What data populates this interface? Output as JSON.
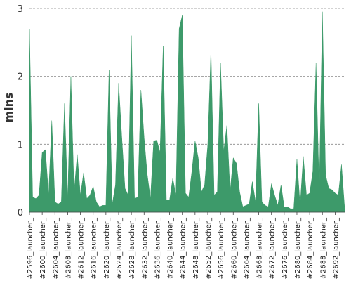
{
  "chart_data": {
    "type": "area",
    "title": "",
    "xlabel": "",
    "ylabel": "mins",
    "ylim": [
      0,
      3
    ],
    "yticks": [
      0,
      1,
      2,
      3
    ],
    "grid": true,
    "area_color": "#3d9a6a",
    "grid_color": "#888888",
    "x": [
      2596,
      2597,
      2598,
      2599,
      2600,
      2601,
      2602,
      2603,
      2604,
      2605,
      2606,
      2607,
      2608,
      2609,
      2610,
      2611,
      2612,
      2613,
      2614,
      2615,
      2616,
      2617,
      2618,
      2619,
      2620,
      2621,
      2622,
      2623,
      2624,
      2625,
      2626,
      2627,
      2628,
      2629,
      2630,
      2631,
      2632,
      2633,
      2634,
      2635,
      2636,
      2637,
      2638,
      2639,
      2640,
      2641,
      2642,
      2643,
      2644,
      2645,
      2646,
      2647,
      2648,
      2649,
      2650,
      2651,
      2652,
      2653,
      2654,
      2655,
      2656,
      2657,
      2658,
      2659,
      2660,
      2661,
      2662,
      2663,
      2664,
      2665,
      2666,
      2667,
      2668,
      2669,
      2670,
      2671,
      2672,
      2673,
      2674,
      2675,
      2676,
      2677,
      2678,
      2679,
      2680,
      2681,
      2682,
      2683,
      2684,
      2685,
      2686,
      2687,
      2688,
      2689,
      2690,
      2691,
      2692,
      2693,
      2694,
      2695
    ],
    "x_tick_labels": [
      "#2596_launcher_",
      "#2600_launcher_",
      "#2604_launcher_",
      "#2608_launcher_",
      "#2612_launcher_",
      "#2616_launcher_",
      "#2620_launcher_",
      "#2624_launcher_",
      "#2628_launcher_",
      "#2632_launcher_",
      "#2636_launcher_",
      "#2640_launcher_",
      "#2644_launcher_",
      "#2648_launcher_",
      "#2652_launcher_",
      "#2656_launcher_",
      "#2660_launcher_",
      "#2664_launcher_",
      "#2668_launcher_",
      "#2672_launcher_",
      "#2676_launcher_",
      "#2680_launcher_",
      "#2684_launcher_",
      "#2688_launcher_",
      "#2692_launcher_"
    ],
    "values": [
      2.7,
      0.22,
      0.2,
      0.25,
      0.88,
      0.92,
      0.25,
      1.35,
      0.15,
      0.12,
      0.15,
      1.6,
      0.2,
      2.0,
      0.3,
      0.85,
      0.25,
      0.58,
      0.2,
      0.25,
      0.38,
      0.15,
      0.08,
      0.1,
      0.1,
      2.1,
      0.12,
      0.4,
      1.9,
      1.1,
      0.35,
      0.25,
      2.6,
      0.2,
      0.22,
      1.8,
      1.1,
      0.55,
      0.2,
      1.05,
      1.06,
      0.88,
      2.45,
      0.18,
      0.18,
      0.5,
      0.25,
      2.7,
      2.9,
      0.28,
      0.22,
      0.6,
      1.05,
      0.8,
      0.3,
      0.4,
      1.0,
      2.4,
      0.25,
      0.3,
      2.2,
      0.9,
      1.28,
      0.3,
      0.8,
      0.72,
      0.3,
      0.08,
      0.1,
      0.12,
      0.45,
      0.15,
      1.6,
      0.15,
      0.1,
      0.08,
      0.42,
      0.25,
      0.1,
      0.4,
      0.08,
      0.08,
      0.05,
      0.05,
      0.78,
      0.1,
      0.82,
      0.25,
      0.28,
      0.6,
      2.2,
      0.3,
      2.95,
      0.55,
      0.35,
      0.33,
      0.28,
      0.25,
      0.7,
      0.05
    ]
  }
}
